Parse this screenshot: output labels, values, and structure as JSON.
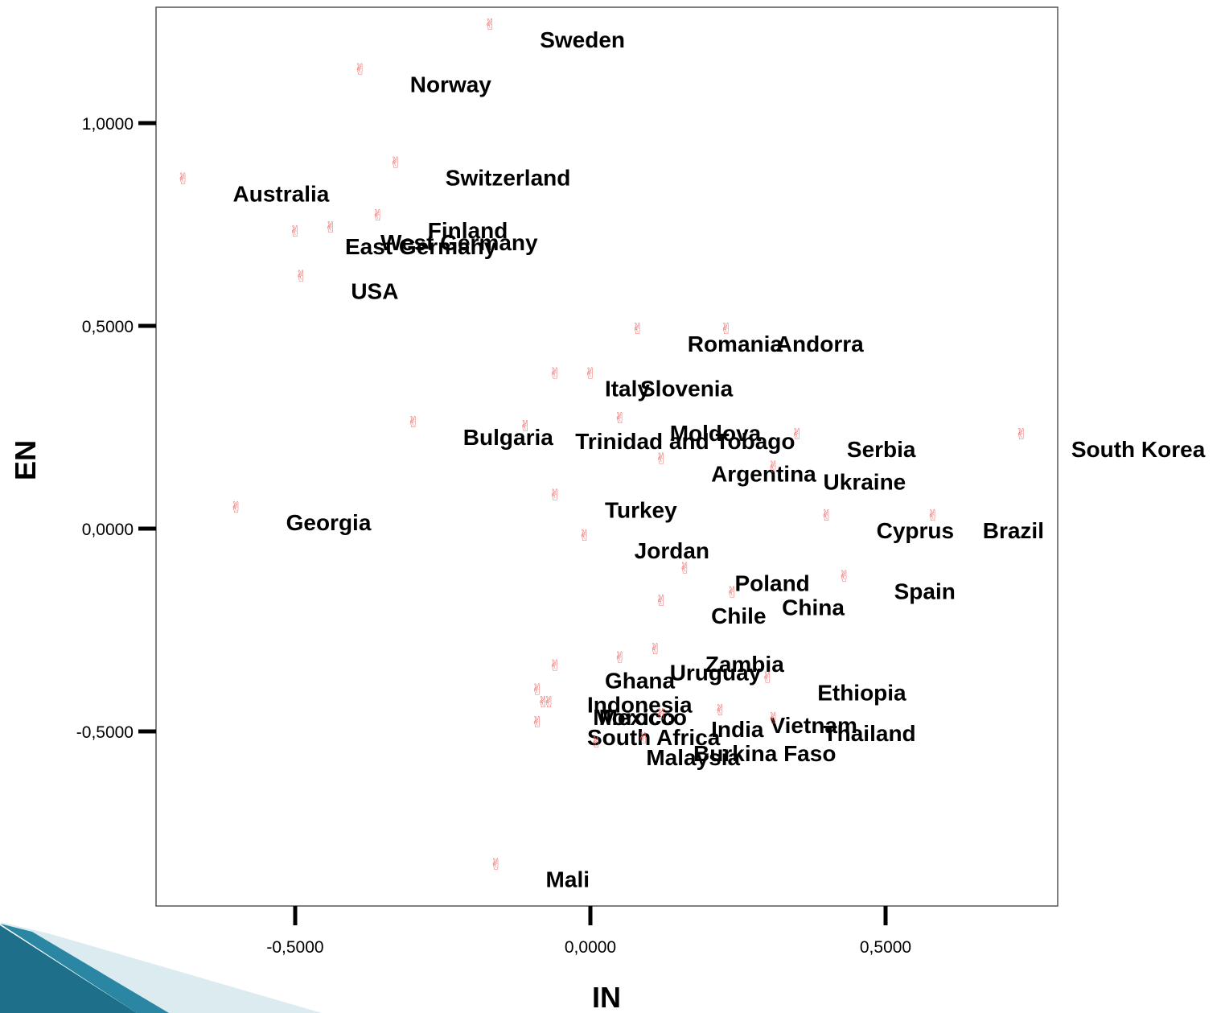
{
  "chart_data": {
    "type": "scatter",
    "title": "",
    "xlabel": "IN",
    "ylabel": "EN",
    "xlim": [
      -0.75,
      0.79
    ],
    "ylim": [
      -0.93,
      1.28
    ],
    "x_ticks": [
      {
        "value": -0.5,
        "label": "-0,5000"
      },
      {
        "value": 0.0,
        "label": "0,0000"
      },
      {
        "value": 0.5,
        "label": "0,5000"
      }
    ],
    "y_ticks": [
      {
        "value": 1.0,
        "label": "1,0000"
      },
      {
        "value": 0.5,
        "label": "0,5000"
      },
      {
        "value": 0.0,
        "label": "0,0000"
      },
      {
        "value": -0.5,
        "label": "-0,5000"
      }
    ],
    "marker_glyph": "✌",
    "marker_color": "#f07070",
    "grid": false,
    "legend": "none",
    "points": [
      {
        "label": "Sweden",
        "x": -0.17,
        "y": 1.23
      },
      {
        "label": "Norway",
        "x": -0.39,
        "y": 1.12
      },
      {
        "label": "Switzerland",
        "x": -0.33,
        "y": 0.89
      },
      {
        "label": "Australia",
        "x": -0.69,
        "y": 0.85
      },
      {
        "label": "Finland",
        "x": -0.36,
        "y": 0.76
      },
      {
        "label": "West Germany",
        "x": -0.44,
        "y": 0.73
      },
      {
        "label": "East Germany",
        "x": -0.5,
        "y": 0.72
      },
      {
        "label": "USA",
        "x": -0.49,
        "y": 0.61
      },
      {
        "label": "Romania",
        "x": 0.08,
        "y": 0.48
      },
      {
        "label": "Andorra",
        "x": 0.23,
        "y": 0.48
      },
      {
        "label": "Italy",
        "x": -0.06,
        "y": 0.37
      },
      {
        "label": "Slovenia",
        "x": 0.0,
        "y": 0.37
      },
      {
        "label": "Bulgaria",
        "x": -0.3,
        "y": 0.25
      },
      {
        "label": "Trinidad and Tobago",
        "x": -0.11,
        "y": 0.24
      },
      {
        "label": "Moldova",
        "x": 0.05,
        "y": 0.26
      },
      {
        "label": "Serbia",
        "x": 0.35,
        "y": 0.22
      },
      {
        "label": "South Korea",
        "x": 0.73,
        "y": 0.22
      },
      {
        "label": "Argentina",
        "x": 0.12,
        "y": 0.16
      },
      {
        "label": "Ukraine",
        "x": 0.31,
        "y": 0.14
      },
      {
        "label": "Turkey",
        "x": -0.06,
        "y": 0.07
      },
      {
        "label": "Georgia",
        "x": -0.6,
        "y": 0.04
      },
      {
        "label": "Cyprus",
        "x": 0.4,
        "y": 0.02
      },
      {
        "label": "Brazil",
        "x": 0.58,
        "y": 0.02
      },
      {
        "label": "Jordan",
        "x": -0.01,
        "y": -0.03
      },
      {
        "label": "Poland",
        "x": 0.16,
        "y": -0.11
      },
      {
        "label": "Spain",
        "x": 0.43,
        "y": -0.13
      },
      {
        "label": "China",
        "x": 0.24,
        "y": -0.17
      },
      {
        "label": "Chile",
        "x": 0.12,
        "y": -0.19
      },
      {
        "label": "Zambia",
        "x": 0.11,
        "y": -0.31
      },
      {
        "label": "Uruguay",
        "x": 0.05,
        "y": -0.33
      },
      {
        "label": "Ghana",
        "x": -0.06,
        "y": -0.35
      },
      {
        "label": "Ethiopia",
        "x": 0.3,
        "y": -0.38
      },
      {
        "label": "Indonesia",
        "x": -0.09,
        "y": -0.41
      },
      {
        "label": "Morocco",
        "x": -0.08,
        "y": -0.44
      },
      {
        "label": "Mexico",
        "x": -0.07,
        "y": -0.44
      },
      {
        "label": "Vietnam",
        "x": 0.22,
        "y": -0.46
      },
      {
        "label": "India",
        "x": 0.12,
        "y": -0.47
      },
      {
        "label": "Thailand",
        "x": 0.31,
        "y": -0.48
      },
      {
        "label": "South Africa",
        "x": -0.09,
        "y": -0.49
      },
      {
        "label": "Malaysia",
        "x": 0.01,
        "y": -0.54
      },
      {
        "label": "Burkina Faso",
        "x": 0.09,
        "y": -0.53
      },
      {
        "label": "Mali",
        "x": -0.16,
        "y": -0.84
      }
    ]
  }
}
